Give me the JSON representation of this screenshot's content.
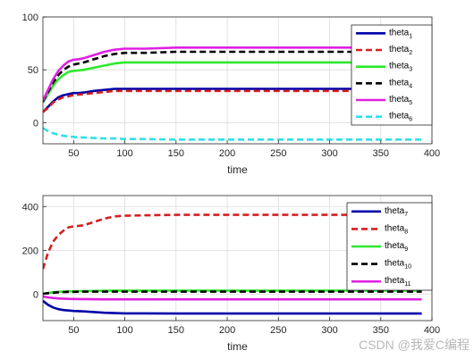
{
  "chart_data": [
    {
      "type": "line",
      "xlabel": "time",
      "xlim": [
        20,
        400
      ],
      "ylim": [
        -20,
        100
      ],
      "xticks": [
        50,
        100,
        150,
        200,
        250,
        300,
        350,
        400
      ],
      "yticks": [
        0,
        50,
        100
      ],
      "grid": true,
      "legend_position": "top-right",
      "x": [
        20,
        25,
        30,
        35,
        40,
        45,
        50,
        55,
        60,
        70,
        80,
        90,
        100,
        120,
        150,
        200,
        250,
        300,
        350,
        390
      ],
      "series": [
        {
          "name": "theta",
          "sub": "1",
          "color": "#0000a8",
          "dash": "solid",
          "values": [
            10,
            15,
            20,
            24,
            26,
            27,
            28,
            28,
            28.5,
            30,
            31,
            32,
            32,
            32,
            32,
            32,
            32,
            32,
            32,
            32
          ]
        },
        {
          "name": "theta",
          "sub": "2",
          "color": "#d42020",
          "dash": "dashed",
          "values": [
            10,
            14,
            19,
            22,
            24,
            25,
            26,
            26.5,
            27,
            28,
            29,
            30,
            30,
            30,
            30,
            30,
            30,
            30,
            30,
            30
          ]
        },
        {
          "name": "theta",
          "sub": "3",
          "color": "#2ee82e",
          "dash": "solid",
          "values": [
            19,
            27,
            35,
            41,
            45,
            48,
            49,
            49.5,
            50,
            52,
            54,
            56,
            57,
            57,
            57,
            57,
            57,
            57,
            57,
            57
          ]
        },
        {
          "name": "theta",
          "sub": "4",
          "color": "#000000",
          "dash": "dashed",
          "values": [
            20,
            29,
            38,
            45,
            50,
            53,
            55,
            56,
            57,
            60,
            63,
            65,
            66,
            66,
            67,
            67,
            67,
            67,
            67,
            67
          ]
        },
        {
          "name": "theta",
          "sub": "5",
          "color": "#e020e0",
          "dash": "solid",
          "values": [
            21,
            31,
            41,
            49,
            54,
            58,
            59.5,
            60,
            61,
            64,
            67,
            69,
            70,
            70,
            71,
            71,
            71,
            71,
            71,
            71
          ]
        },
        {
          "name": "theta",
          "sub": "6",
          "color": "#30e0e8",
          "dash": "dashed",
          "values": [
            -5,
            -8,
            -10,
            -11.5,
            -12.5,
            -13,
            -13.5,
            -14,
            -14,
            -14.5,
            -15,
            -15,
            -15.5,
            -15.5,
            -16,
            -16,
            -16,
            -16,
            -16,
            -16
          ]
        }
      ]
    },
    {
      "type": "line",
      "xlabel": "time",
      "xlim": [
        20,
        400
      ],
      "ylim": [
        -120,
        450
      ],
      "xticks": [
        50,
        100,
        150,
        200,
        250,
        300,
        350,
        400
      ],
      "yticks": [
        0,
        200,
        400
      ],
      "grid": true,
      "legend_position": "top-right",
      "x": [
        20,
        25,
        30,
        35,
        40,
        45,
        50,
        55,
        60,
        70,
        80,
        90,
        100,
        120,
        150,
        200,
        250,
        300,
        350,
        390
      ],
      "series": [
        {
          "name": "theta",
          "sub": "7",
          "color": "#0000a8",
          "dash": "solid",
          "values": [
            -30,
            -48,
            -60,
            -68,
            -72,
            -74,
            -76,
            -77,
            -78,
            -81,
            -84,
            -86,
            -87,
            -87,
            -88,
            -88,
            -88,
            -88,
            -88,
            -88
          ]
        },
        {
          "name": "theta",
          "sub": "8",
          "color": "#d42020",
          "dash": "dashed",
          "values": [
            115,
            190,
            240,
            270,
            290,
            305,
            310,
            312,
            315,
            330,
            345,
            355,
            358,
            360,
            362,
            362,
            362,
            362,
            362,
            362
          ]
        },
        {
          "name": "theta",
          "sub": "9",
          "color": "#2ee82e",
          "dash": "solid",
          "values": [
            2,
            6,
            9,
            11,
            12,
            13,
            13.5,
            14,
            14,
            15,
            16,
            17,
            17,
            17,
            17,
            17,
            17,
            17,
            17,
            17
          ]
        },
        {
          "name": "theta",
          "sub": "10",
          "color": "#000000",
          "dash": "dashed",
          "values": [
            2,
            5,
            7,
            9,
            10,
            11,
            11,
            11.5,
            12,
            12,
            12,
            12,
            12,
            12,
            12,
            12,
            12,
            12,
            12,
            12
          ]
        },
        {
          "name": "theta",
          "sub": "11",
          "color": "#e020e0",
          "dash": "solid",
          "values": [
            -10,
            -14,
            -17,
            -19,
            -20,
            -21,
            -21.5,
            -22,
            -22,
            -22.5,
            -23,
            -23,
            -23,
            -23,
            -23,
            -23,
            -23,
            -23,
            -23,
            -23
          ]
        }
      ]
    }
  ],
  "watermark": "CSDN @我爱C编程"
}
